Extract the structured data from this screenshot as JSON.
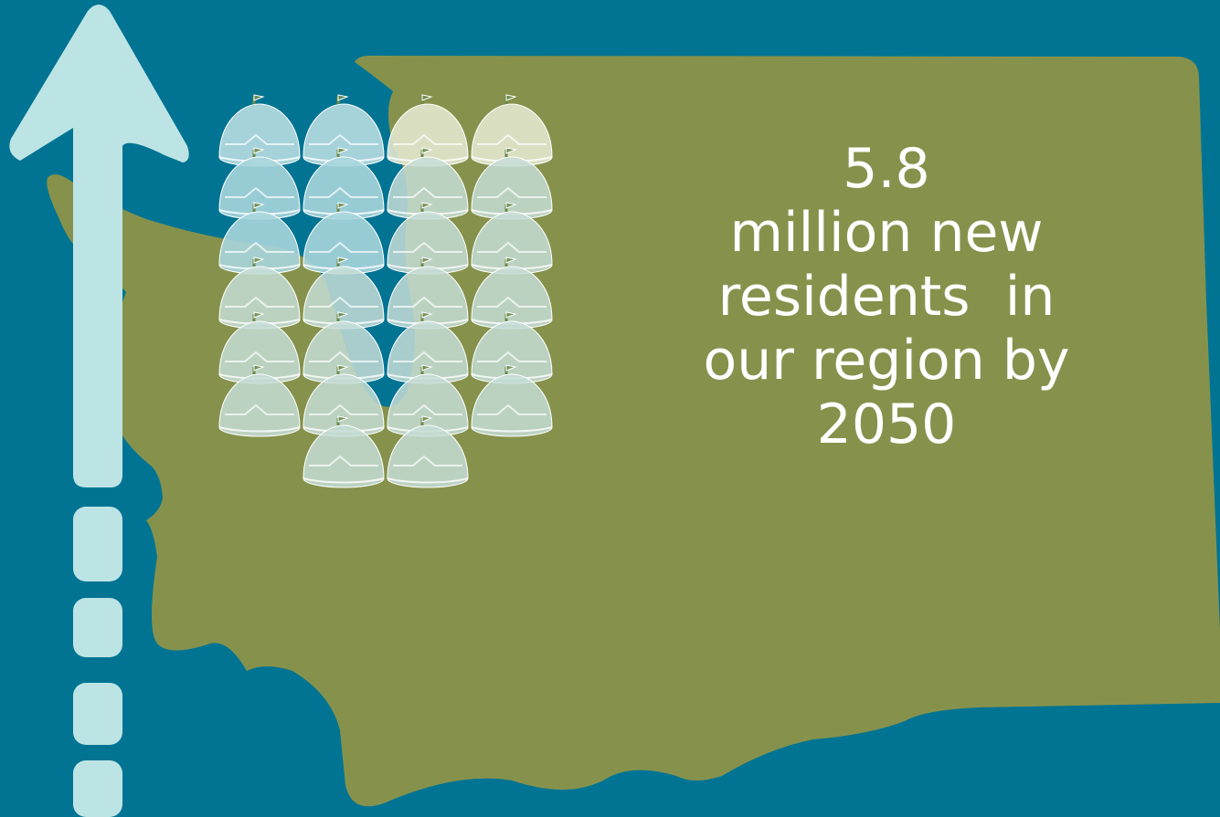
{
  "stat": {
    "number": "5.8",
    "line1": "million new",
    "line2": "residents  in",
    "line3": "our region by",
    "line4": "2050"
  },
  "colors": {
    "background": "#017493",
    "land": "#86924C",
    "arrow": "#BDE4E5",
    "dome_filled": "#A9D6DD",
    "dome_empty": "#E6E9D2",
    "text": "#FFFFFF"
  },
  "dome_grid": {
    "count": 26,
    "highlighted": 8
  }
}
